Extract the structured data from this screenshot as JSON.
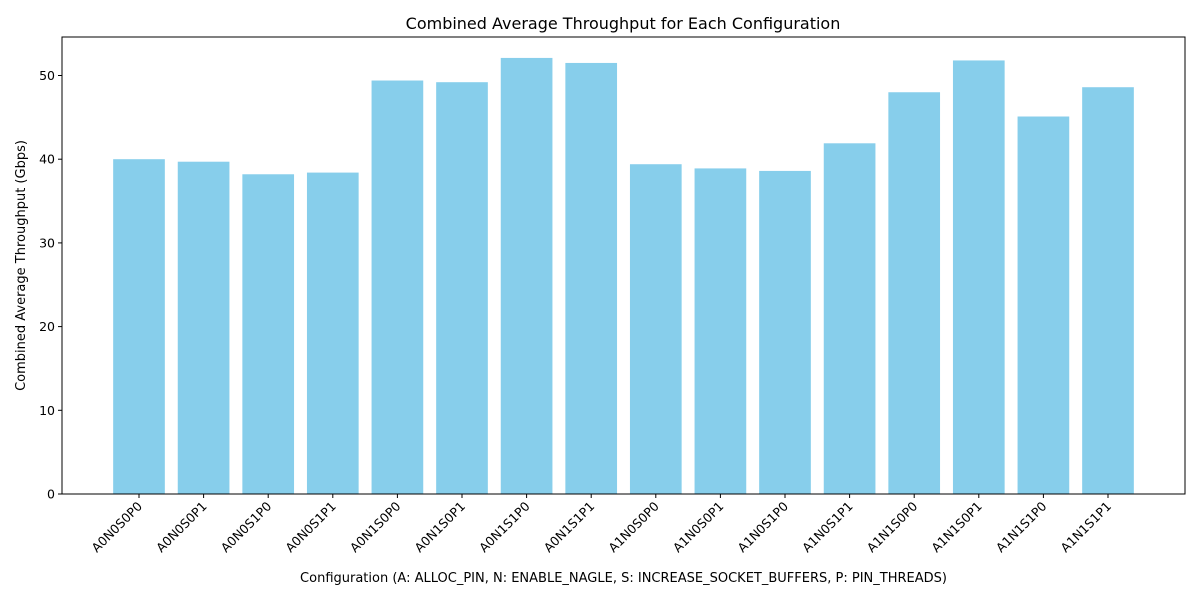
{
  "chart_data": {
    "type": "bar",
    "title": "Combined Average Throughput for Each Configuration",
    "xlabel": "Configuration (A: ALLOC_PIN, N: ENABLE_NAGLE, S: INCREASE_SOCKET_BUFFERS, P: PIN_THREADS)",
    "ylabel": "Combined Average Throughput (Gbps)",
    "categories": [
      "A0N0S0P0",
      "A0N0S0P1",
      "A0N0S1P0",
      "A0N0S1P1",
      "A0N1S0P0",
      "A0N1S0P1",
      "A0N1S1P0",
      "A0N1S1P1",
      "A1N0S0P0",
      "A1N0S0P1",
      "A1N0S1P0",
      "A1N0S1P1",
      "A1N1S0P0",
      "A1N1S0P1",
      "A1N1S1P0",
      "A1N1S1P1"
    ],
    "values": [
      40.0,
      39.7,
      38.2,
      38.4,
      49.4,
      49.2,
      52.1,
      51.5,
      39.4,
      38.9,
      38.6,
      41.9,
      48.0,
      51.8,
      45.1,
      48.6
    ],
    "yticks": [
      0,
      10,
      20,
      30,
      40,
      50
    ],
    "ylim": [
      0,
      54.6
    ],
    "bar_color": "#87CEEB",
    "grid": false,
    "legend": "none"
  }
}
